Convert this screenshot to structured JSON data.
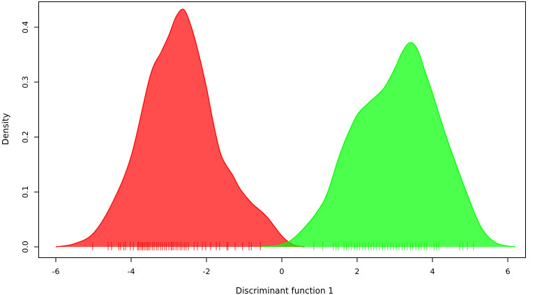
{
  "chart_data": {
    "type": "area",
    "title": "",
    "xlabel": "Discriminant function 1",
    "ylabel": "Density",
    "xlim": [
      -6.5,
      6.5
    ],
    "ylim": [
      0,
      0.44
    ],
    "xticks": [
      -6,
      -4,
      -2,
      0,
      2,
      4,
      6
    ],
    "xtick_labels": [
      "-6",
      "-4",
      "-2",
      "0",
      "2",
      "4",
      "6"
    ],
    "yticks": [
      0,
      0.1,
      0.2,
      0.3,
      0.4
    ],
    "ytick_labels": [
      "0.0",
      "0.1",
      "0.2",
      "0.3",
      "0.4"
    ],
    "grid": false,
    "series": [
      {
        "color": "#ff0000",
        "fill": "rgba(255,0,0,0.7)",
        "x": [
          -6,
          -5.5,
          -5,
          -4.5,
          -4,
          -3.5,
          -3.2,
          -3.0,
          -2.8,
          -2.6,
          -2.4,
          -2.2,
          -2.0,
          -1.8,
          -1.6,
          -1.3,
          -1.1,
          -0.8,
          -0.4,
          0,
          0.3,
          0.6
        ],
        "y": [
          0,
          0.006,
          0.025,
          0.08,
          0.165,
          0.31,
          0.355,
          0.385,
          0.42,
          0.432,
          0.4,
          0.35,
          0.29,
          0.22,
          0.165,
          0.13,
          0.105,
          0.08,
          0.055,
          0.02,
          0.004,
          0
        ],
        "rug": [
          -5.02,
          -4.61,
          -4.52,
          -4.33,
          -4.28,
          -4.2,
          -4.15,
          -4.02,
          -3.94,
          -3.83,
          -3.8,
          -3.76,
          -3.72,
          -3.69,
          -3.65,
          -3.61,
          -3.57,
          -3.54,
          -3.5,
          -3.44,
          -3.39,
          -3.33,
          -3.28,
          -3.22,
          -3.17,
          -3.11,
          -3.06,
          -3.0,
          -2.94,
          -2.91,
          -2.87,
          -2.81,
          -2.76,
          -2.7,
          -2.65,
          -2.59,
          -2.54,
          -2.48,
          -2.33,
          -2.24,
          -2.11,
          -2.02,
          -1.89,
          -1.74,
          -1.65,
          -1.46,
          -1.43,
          -1.24,
          -1.04,
          -0.87,
          -0.81,
          -0.57
        ]
      },
      {
        "color": "#00ff00",
        "fill": "rgba(0,255,0,0.7)",
        "x": [
          -0.6,
          -0.2,
          0.2,
          0.6,
          1.0,
          1.22,
          1.5,
          1.72,
          2.0,
          2.3,
          2.7,
          3.0,
          3.2,
          3.4,
          3.6,
          3.8,
          4.0,
          4.37,
          4.9,
          5.3,
          5.7,
          6.2
        ],
        "y": [
          0,
          0.002,
          0.01,
          0.035,
          0.07,
          0.1,
          0.16,
          0.2,
          0.24,
          0.262,
          0.288,
          0.325,
          0.355,
          0.372,
          0.36,
          0.32,
          0.28,
          0.2,
          0.1,
          0.035,
          0.007,
          0
        ],
        "rug": [
          0.85,
          1.09,
          1.37,
          1.44,
          1.5,
          1.65,
          1.72,
          1.78,
          1.85,
          1.93,
          2.0,
          2.07,
          2.15,
          2.22,
          2.3,
          2.37,
          2.44,
          2.52,
          2.59,
          2.67,
          2.74,
          2.81,
          2.89,
          2.96,
          3.04,
          3.11,
          3.19,
          3.26,
          3.33,
          3.41,
          3.48,
          3.56,
          3.63,
          3.7,
          3.78,
          3.85,
          4.04,
          4.11,
          4.17,
          4.72,
          4.81,
          4.93,
          5.09
        ]
      }
    ]
  }
}
